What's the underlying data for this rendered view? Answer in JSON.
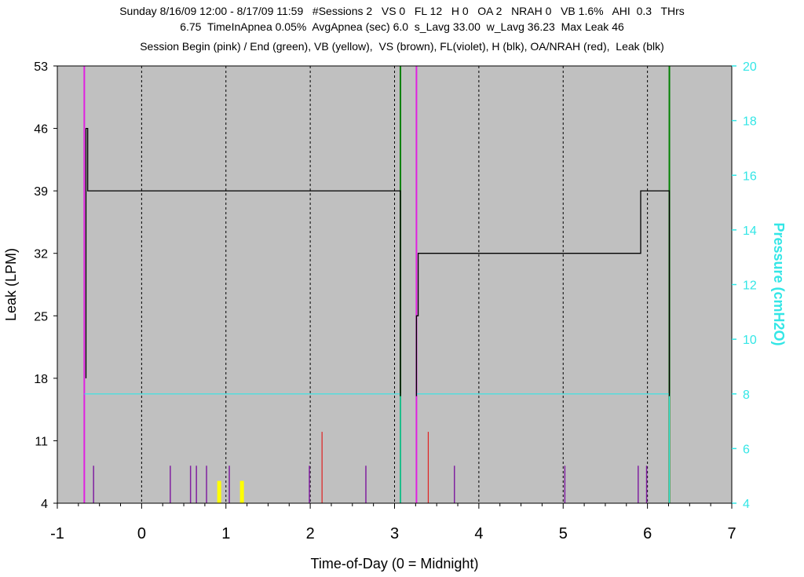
{
  "header": {
    "line1": "Sunday 8/16/09 12:00 - 8/17/09 11:59   #Sessions 2   VS 0   FL 12   H 0   OA 2   NRAH 0   VB 1.6%   AHI  0.3   THrs",
    "line2": "6.75  TimeInApnea 0.05%  AvgApnea (sec) 6.0  s_Lavg 33.00  w_Lavg 36.23  Max Leak 46",
    "line3": "Session Begin (pink) / End (green), VB (yellow),  VS (brown), FL(violet), H (blk), OA/NRAH (red),  Leak (blk)"
  },
  "chart_data": {
    "type": "line",
    "xlabel": "Time-of-Day (0 = Midnight)",
    "ylabel": "Leak (LPM)",
    "ylabel_right": "Pressure (cmH2O)",
    "xlim": [
      -1,
      7
    ],
    "ylim": [
      4,
      53
    ],
    "ylim_right": [
      4,
      20
    ],
    "x_ticks": [
      -1,
      0,
      1,
      2,
      3,
      4,
      5,
      6,
      7
    ],
    "y_ticks": [
      4,
      11,
      18,
      25,
      32,
      39,
      46,
      53
    ],
    "y_ticks_right": [
      4,
      6,
      8,
      10,
      12,
      14,
      16,
      18,
      20
    ],
    "grid_x": [
      0,
      1,
      2,
      3,
      4,
      5,
      6
    ],
    "colors": {
      "plot_bg": "#c0c0c0",
      "session_begin": "#e020e0",
      "session_end": "#008000",
      "pressure": "#33e6e6",
      "leak": "#000000",
      "fl": "#8020a0",
      "oa": "#e02020",
      "vb": "#ffff00",
      "grid": "#000000"
    },
    "session_begin": [
      -0.68,
      3.26
    ],
    "session_end": [
      3.07,
      6.26
    ],
    "leak_series": [
      {
        "x": [
          -0.66,
          -0.66,
          -0.64,
          -0.64,
          3.07,
          3.07
        ],
        "y": [
          18,
          46,
          46,
          39,
          39,
          16
        ]
      },
      {
        "x": [
          3.26,
          3.26,
          3.28,
          3.28,
          5.92,
          5.92,
          6.26,
          6.26
        ],
        "y": [
          16,
          25,
          25,
          32,
          32,
          39,
          39,
          16
        ]
      }
    ],
    "pressure_series": [
      {
        "x": [
          -0.68,
          3.07,
          3.07
        ],
        "y": [
          8,
          8,
          4
        ]
      },
      {
        "x": [
          3.26,
          6.26,
          6.26
        ],
        "y": [
          8,
          8,
          4
        ]
      }
    ],
    "fl_events": [
      -0.57,
      0.34,
      0.58,
      0.65,
      0.77,
      1.04,
      1.99,
      2.66,
      3.71,
      5.02,
      5.89,
      5.99
    ],
    "fl_height": 8.2,
    "oa_events": [
      2.14,
      3.4
    ],
    "oa_height": 12,
    "vb_events": [
      0.92,
      1.19
    ],
    "vb_height": 6.5
  }
}
